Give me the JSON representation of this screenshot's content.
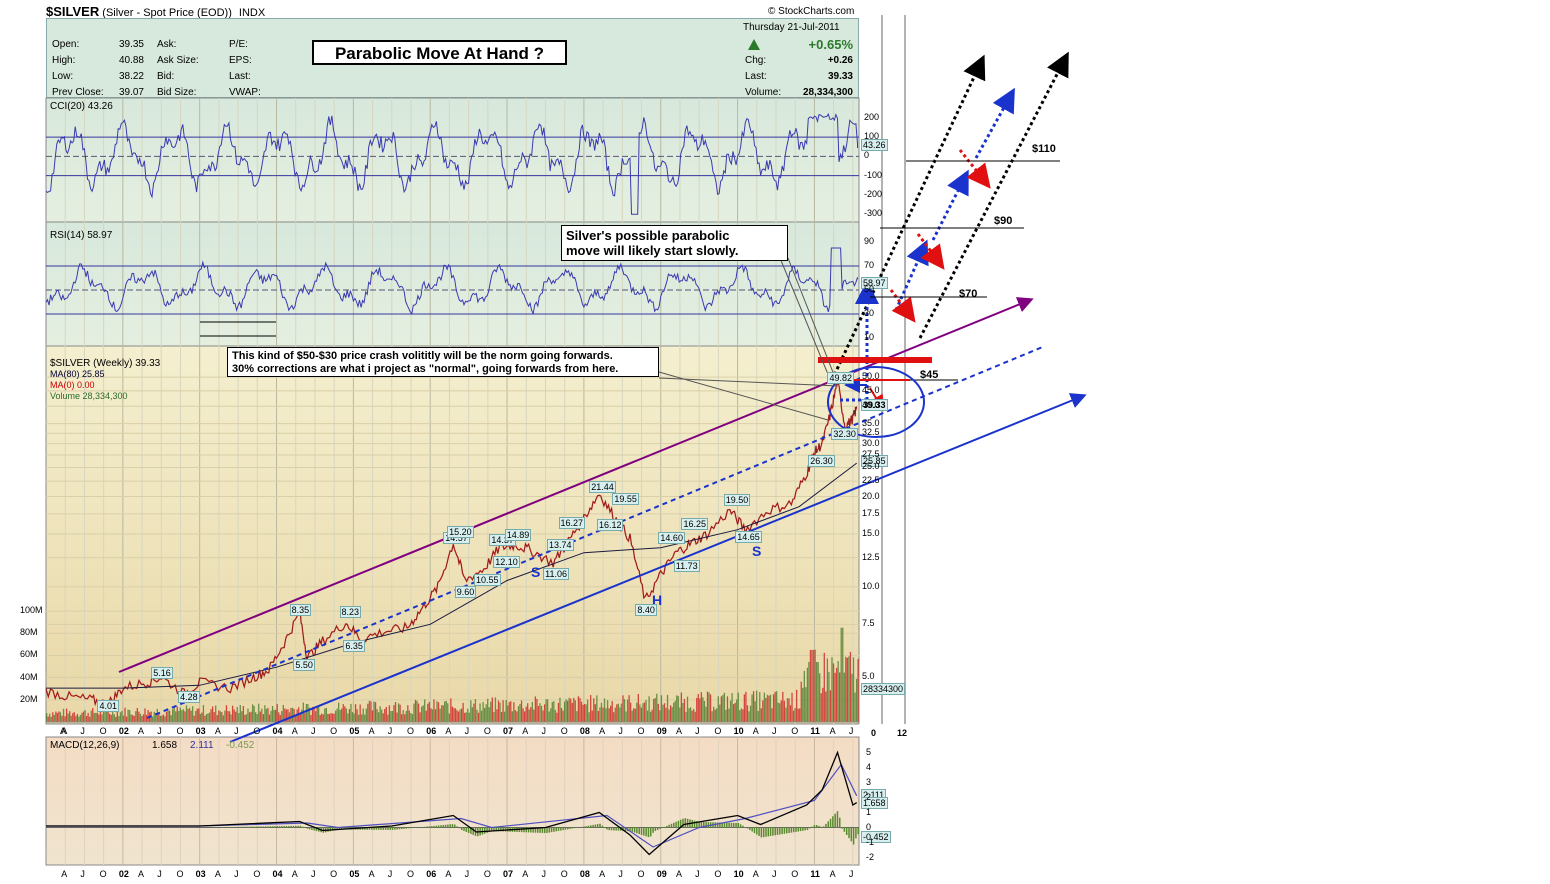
{
  "header": {
    "ticker": "$SILVER",
    "description": "(Silver - Spot Price (EOD))",
    "exchange": "INDX",
    "source": "© StockCharts.com",
    "date": "Thursday  21-Jul-2011",
    "change_pct": "+0.65%",
    "quote_left": [
      {
        "label": "Open:",
        "value": "39.35"
      },
      {
        "label": "High:",
        "value": "40.88"
      },
      {
        "label": "Low:",
        "value": "38.22"
      },
      {
        "label": "Prev Close:",
        "value": "39.07"
      }
    ],
    "quote_mid": [
      "Ask:",
      "Ask Size:",
      "Bid:",
      "Bid Size:"
    ],
    "quote_mid2": [
      "P/E:",
      "EPS:",
      "Last:",
      "VWAP:"
    ],
    "quote_right": [
      {
        "label": "Chg:",
        "value": "+0.26"
      },
      {
        "label": "Last:",
        "value": "39.33"
      },
      {
        "label": "Volume:",
        "value": "28,334,300"
      }
    ]
  },
  "annotations": {
    "title_box": "Parabolic Move At Hand ?",
    "callout_1_line1": "Silver's possible parabolic",
    "callout_1_line2": "move will likely start slowly.",
    "callout_2_line1": "This kind of $50-$30 price crash volititly will be the norm going forwards.",
    "callout_2_line2": "30% corrections are what i project as \"normal\", going forwards from here.",
    "targets": [
      "$110",
      "$90",
      "$70",
      "$45"
    ],
    "hs_labels": [
      "S",
      "H",
      "S"
    ]
  },
  "colors": {
    "price_bg": "#f0e2b0",
    "indicator_bg": "#d5e6dc",
    "macd_bg": "#f3dcc8",
    "channel_purple": "#800080",
    "trend_blue": "#1a33cc",
    "up_bar": "#4a7a2a",
    "down_bar": "#cc2222"
  },
  "chart_data": [
    {
      "type": "line",
      "name_label": "CCI(20) 43.26",
      "y_ticks": [
        "200",
        "100",
        "0",
        "-100",
        "-200",
        "-300"
      ],
      "last_value": "43.26",
      "levels": [
        100,
        0,
        -100
      ]
    },
    {
      "type": "line",
      "name_label": "RSI(14) 58.97",
      "y_ticks": [
        "90",
        "70",
        "50",
        "30",
        "10"
      ],
      "last_value": "58.97",
      "levels": [
        70,
        50,
        30
      ]
    },
    {
      "type": "line",
      "name_label": "$SILVER (Weekly) 39.33",
      "legend": [
        "MA(80) 25.85",
        "MA(0) 0.00",
        "Volume 28,334,300"
      ],
      "y_scale": "log",
      "y_ticks": [
        "50.0",
        "45.0",
        "40.0",
        "35.0",
        "32.5",
        "30.0",
        "27.5",
        "25.0",
        "22.5",
        "20.0",
        "17.5",
        "15.0",
        "12.5",
        "10.0",
        "7.5",
        "5.0"
      ],
      "x_ticks": [
        "A",
        "J",
        "O",
        "02",
        "A",
        "J",
        "O",
        "03",
        "A",
        "J",
        "O",
        "04",
        "A",
        "J",
        "O",
        "05",
        "A",
        "J",
        "O",
        "06",
        "A",
        "J",
        "O",
        "07",
        "A",
        "J",
        "O",
        "08",
        "A",
        "J",
        "O",
        "09",
        "A",
        "J",
        "O",
        "10",
        "A",
        "J",
        "O",
        "11",
        "A",
        "J"
      ],
      "ext_x_ticks": [
        "0",
        "12"
      ],
      "volume_ticks": [
        "100M",
        "80M",
        "60M",
        "40M",
        "20M"
      ],
      "volume_last": "28334300",
      "last_price": "39.33",
      "ma80_last": "25.85",
      "price_labels": [
        {
          "t": "4.01",
          "x": 2001.8,
          "y": 4.01
        },
        {
          "t": "5.16",
          "x": 2002.5,
          "y": 5.16
        },
        {
          "t": "4.28",
          "x": 2002.85,
          "y": 4.28
        },
        {
          "t": "8.35",
          "x": 2004.3,
          "y": 8.35
        },
        {
          "t": "5.50",
          "x": 2004.35,
          "y": 5.5
        },
        {
          "t": "8.23",
          "x": 2004.95,
          "y": 8.23
        },
        {
          "t": "6.35",
          "x": 2005.0,
          "y": 6.35
        },
        {
          "t": "14.57",
          "x": 2006.3,
          "y": 14.57
        },
        {
          "t": "15.20",
          "x": 2006.35,
          "y": 15.2
        },
        {
          "t": "9.60",
          "x": 2006.45,
          "y": 9.6
        },
        {
          "t": "10.55",
          "x": 2006.7,
          "y": 10.55
        },
        {
          "t": "14.37",
          "x": 2006.9,
          "y": 14.37
        },
        {
          "t": "14.89",
          "x": 2007.1,
          "y": 14.89
        },
        {
          "t": "12.10",
          "x": 2006.95,
          "y": 12.1
        },
        {
          "t": "11.06",
          "x": 2007.6,
          "y": 11.06
        },
        {
          "t": "13.74",
          "x": 2007.65,
          "y": 13.74
        },
        {
          "t": "16.27",
          "x": 2007.8,
          "y": 16.27
        },
        {
          "t": "21.44",
          "x": 2008.2,
          "y": 21.44
        },
        {
          "t": "16.12",
          "x": 2008.3,
          "y": 16.12
        },
        {
          "t": "19.55",
          "x": 2008.5,
          "y": 19.55
        },
        {
          "t": "8.40",
          "x": 2008.8,
          "y": 8.4
        },
        {
          "t": "14.60",
          "x": 2009.1,
          "y": 14.6
        },
        {
          "t": "11.73",
          "x": 2009.3,
          "y": 11.73
        },
        {
          "t": "16.25",
          "x": 2009.4,
          "y": 16.25
        },
        {
          "t": "19.50",
          "x": 2009.95,
          "y": 19.5
        },
        {
          "t": "14.65",
          "x": 2010.1,
          "y": 14.65
        },
        {
          "t": "26.30",
          "x": 2011.05,
          "y": 26.3
        },
        {
          "t": "32.30",
          "x": 2011.35,
          "y": 32.3
        },
        {
          "t": "49.82",
          "x": 2011.3,
          "y": 49.82
        }
      ],
      "price_series": [
        {
          "x": 2001.0,
          "y": 4.5
        },
        {
          "x": 2001.3,
          "y": 4.3
        },
        {
          "x": 2001.6,
          "y": 4.2
        },
        {
          "x": 2001.8,
          "y": 4.05
        },
        {
          "x": 2002.0,
          "y": 4.6
        },
        {
          "x": 2002.3,
          "y": 4.8
        },
        {
          "x": 2002.5,
          "y": 5.0
        },
        {
          "x": 2002.8,
          "y": 4.4
        },
        {
          "x": 2003.0,
          "y": 4.8
        },
        {
          "x": 2003.4,
          "y": 4.6
        },
        {
          "x": 2003.7,
          "y": 5.0
        },
        {
          "x": 2003.9,
          "y": 5.3
        },
        {
          "x": 2004.1,
          "y": 6.5
        },
        {
          "x": 2004.3,
          "y": 8.2
        },
        {
          "x": 2004.4,
          "y": 5.8
        },
        {
          "x": 2004.6,
          "y": 6.6
        },
        {
          "x": 2004.9,
          "y": 7.6
        },
        {
          "x": 2005.1,
          "y": 6.7
        },
        {
          "x": 2005.4,
          "y": 7.1
        },
        {
          "x": 2005.7,
          "y": 7.3
        },
        {
          "x": 2005.9,
          "y": 8.5
        },
        {
          "x": 2006.1,
          "y": 10.0
        },
        {
          "x": 2006.3,
          "y": 14.0
        },
        {
          "x": 2006.45,
          "y": 10.5
        },
        {
          "x": 2006.7,
          "y": 11.5
        },
        {
          "x": 2006.9,
          "y": 13.5
        },
        {
          "x": 2007.1,
          "y": 13.8
        },
        {
          "x": 2007.3,
          "y": 13.3
        },
        {
          "x": 2007.6,
          "y": 12.0
        },
        {
          "x": 2007.8,
          "y": 14.2
        },
        {
          "x": 2008.0,
          "y": 17.0
        },
        {
          "x": 2008.2,
          "y": 20.5
        },
        {
          "x": 2008.4,
          "y": 17.0
        },
        {
          "x": 2008.6,
          "y": 14.5
        },
        {
          "x": 2008.8,
          "y": 9.0
        },
        {
          "x": 2009.0,
          "y": 11.0
        },
        {
          "x": 2009.2,
          "y": 13.0
        },
        {
          "x": 2009.4,
          "y": 14.0
        },
        {
          "x": 2009.6,
          "y": 15.0
        },
        {
          "x": 2009.9,
          "y": 18.0
        },
        {
          "x": 2010.1,
          "y": 15.5
        },
        {
          "x": 2010.4,
          "y": 18.0
        },
        {
          "x": 2010.7,
          "y": 19.0
        },
        {
          "x": 2010.9,
          "y": 24.0
        },
        {
          "x": 2011.0,
          "y": 28.0
        },
        {
          "x": 2011.1,
          "y": 30.0
        },
        {
          "x": 2011.2,
          "y": 37.0
        },
        {
          "x": 2011.3,
          "y": 48.5
        },
        {
          "x": 2011.4,
          "y": 34.0
        },
        {
          "x": 2011.5,
          "y": 36.5
        },
        {
          "x": 2011.55,
          "y": 39.33
        }
      ],
      "ma80_series": [
        {
          "x": 2001.0,
          "y": 4.6
        },
        {
          "x": 2002.0,
          "y": 4.6
        },
        {
          "x": 2003.0,
          "y": 4.7
        },
        {
          "x": 2004.0,
          "y": 5.4
        },
        {
          "x": 2005.0,
          "y": 6.5
        },
        {
          "x": 2006.0,
          "y": 7.5
        },
        {
          "x": 2007.0,
          "y": 10.5
        },
        {
          "x": 2008.0,
          "y": 13.0
        },
        {
          "x": 2009.0,
          "y": 13.5
        },
        {
          "x": 2010.0,
          "y": 15.5
        },
        {
          "x": 2010.8,
          "y": 18.5
        },
        {
          "x": 2011.55,
          "y": 25.85
        }
      ]
    },
    {
      "type": "bar",
      "name_label": "MACD(12,26,9)",
      "values_label": [
        "1.658",
        "2.111",
        "-0.452"
      ],
      "y_ticks": [
        "5",
        "4",
        "3",
        "2",
        "1",
        "0",
        "-1",
        "-2"
      ],
      "x_ticks": [
        "A",
        "J",
        "O",
        "02",
        "A",
        "J",
        "O",
        "03",
        "A",
        "J",
        "O",
        "04",
        "A",
        "J",
        "O",
        "05",
        "A",
        "J",
        "O",
        "06",
        "A",
        "J",
        "O",
        "07",
        "A",
        "J",
        "O",
        "08",
        "A",
        "J",
        "O",
        "09",
        "A",
        "J",
        "O",
        "10",
        "A",
        "J",
        "O",
        "11",
        "A",
        "J"
      ],
      "macd_last": "1.658",
      "signal_last": "2.111",
      "hist_last": "-0.452",
      "macd_series": [
        {
          "x": 2001.0,
          "y": 0.1
        },
        {
          "x": 2003.0,
          "y": 0.1
        },
        {
          "x": 2004.3,
          "y": 0.4
        },
        {
          "x": 2004.6,
          "y": -0.2
        },
        {
          "x": 2005.5,
          "y": 0.1
        },
        {
          "x": 2006.3,
          "y": 0.8
        },
        {
          "x": 2006.6,
          "y": -0.3
        },
        {
          "x": 2007.5,
          "y": 0.0
        },
        {
          "x": 2008.2,
          "y": 1.0
        },
        {
          "x": 2008.6,
          "y": -0.5
        },
        {
          "x": 2008.85,
          "y": -1.8
        },
        {
          "x": 2009.3,
          "y": 0.2
        },
        {
          "x": 2010.0,
          "y": 0.8
        },
        {
          "x": 2010.3,
          "y": 0.2
        },
        {
          "x": 2010.9,
          "y": 1.5
        },
        {
          "x": 2011.1,
          "y": 2.5
        },
        {
          "x": 2011.3,
          "y": 5.0
        },
        {
          "x": 2011.5,
          "y": 1.5
        },
        {
          "x": 2011.55,
          "y": 1.658
        }
      ],
      "signal_series": [
        {
          "x": 2001.0,
          "y": 0.1
        },
        {
          "x": 2003.0,
          "y": 0.1
        },
        {
          "x": 2004.4,
          "y": 0.3
        },
        {
          "x": 2004.8,
          "y": 0.0
        },
        {
          "x": 2006.4,
          "y": 0.6
        },
        {
          "x": 2006.8,
          "y": 0.0
        },
        {
          "x": 2008.3,
          "y": 0.8
        },
        {
          "x": 2008.9,
          "y": -1.3
        },
        {
          "x": 2009.5,
          "y": 0.0
        },
        {
          "x": 2010.1,
          "y": 0.6
        },
        {
          "x": 2011.0,
          "y": 1.8
        },
        {
          "x": 2011.35,
          "y": 4.2
        },
        {
          "x": 2011.55,
          "y": 2.111
        }
      ]
    }
  ]
}
